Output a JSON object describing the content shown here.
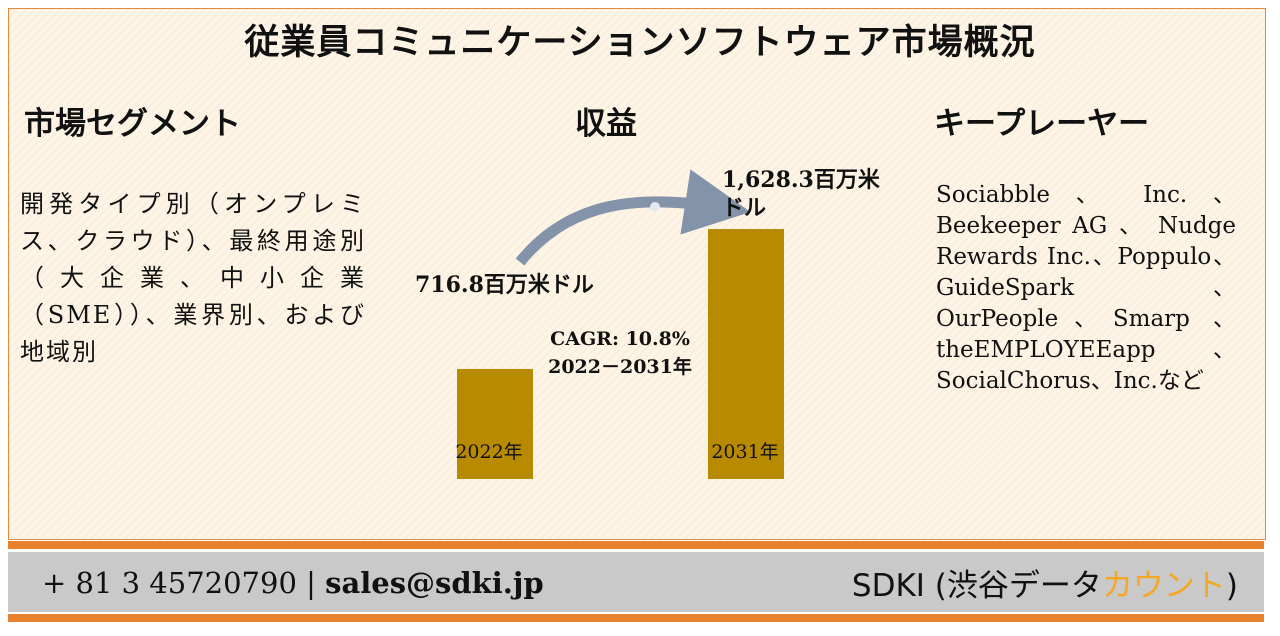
{
  "title": "従業員コミュニケーションソフトウェア市場概況",
  "sections": {
    "segment_heading": "市場セグメント",
    "revenue_heading": "収益",
    "players_heading": "キープレーヤー"
  },
  "segment_text": "開発タイプ別（オンプレミス、クラウド）、最終用途別（大企業、中小企業（SME））、業界別、および地域別",
  "players_text": "Sociabble 、 Inc. 、 Beekeeper AG 、 Nudge Rewards Inc.、Poppulo、GuideSpark、OurPeople、Smarp 、 theEMPLOYEEapp 、SocialChorus、Inc.など",
  "chart_data": {
    "type": "bar",
    "categories": [
      "2022年",
      "2031年"
    ],
    "values": [
      716.8,
      1628.3
    ],
    "value_labels": [
      "716.8百万米ドル",
      "1,628.3百万米ドル"
    ],
    "cagr_label": "CAGR: 10.8%",
    "cagr_period": "2022－2031年",
    "bar_color": "#b88a00",
    "arrow_color": "#8393aa"
  },
  "footer": {
    "contact_phone": "+ 81 3 45720790 | ",
    "contact_email": "sales@sdki.jp",
    "brand_main": "SDKI (渋谷データ",
    "brand_accent": "カウント",
    "brand_end": ")"
  }
}
